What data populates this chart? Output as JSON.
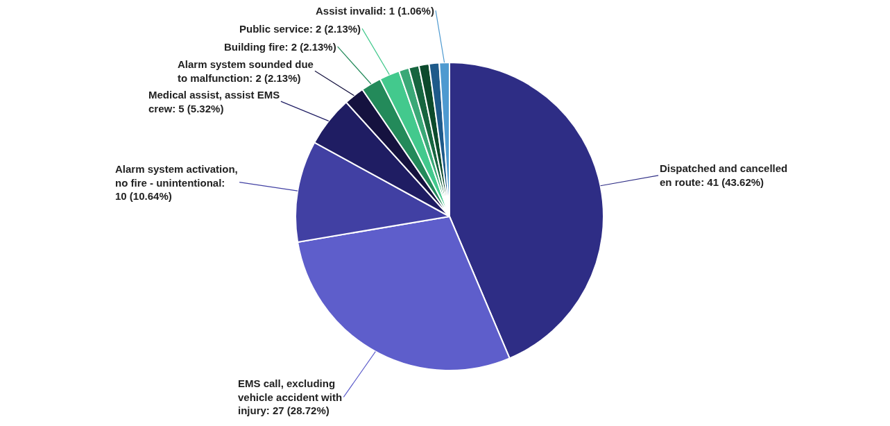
{
  "chart_data": {
    "type": "pie",
    "categories": [
      null,
      null,
      null,
      null,
      null,
      null,
      null,
      null,
      null,
      null,
      null,
      null
    ],
    "values": [
      41,
      27,
      10,
      5,
      2,
      2,
      2,
      1,
      1,
      1,
      1,
      1
    ],
    "value_labels": [
      "Dispatched and cancelled en route: 41 (43.62%)",
      "EMS call, excluding vehicle accident with injury: 27 (28.72%)",
      "Alarm system activation, no fire - unintentional: 10 (10.64%)",
      "Medical assist, assist EMS crew: 5 (5.32%)",
      "Alarm system sounded due to malfunction: 2 (2.13%)",
      "Building fire: 2 (2.13%)",
      "Public service: 2 (2.13%)",
      null,
      null,
      null,
      null,
      "Assist invalid: 1 (1.06%)"
    ],
    "colors": [
      "#2e2d85",
      "#5e5ecb",
      "#4140a3",
      "#1f1d63",
      "#15123f",
      "#238a5a",
      "#43c98d",
      "#3aa877",
      "#16653f",
      "#0c4a2c",
      "#1e5a8a",
      "#4e9ad0"
    ],
    "legend": false
  }
}
